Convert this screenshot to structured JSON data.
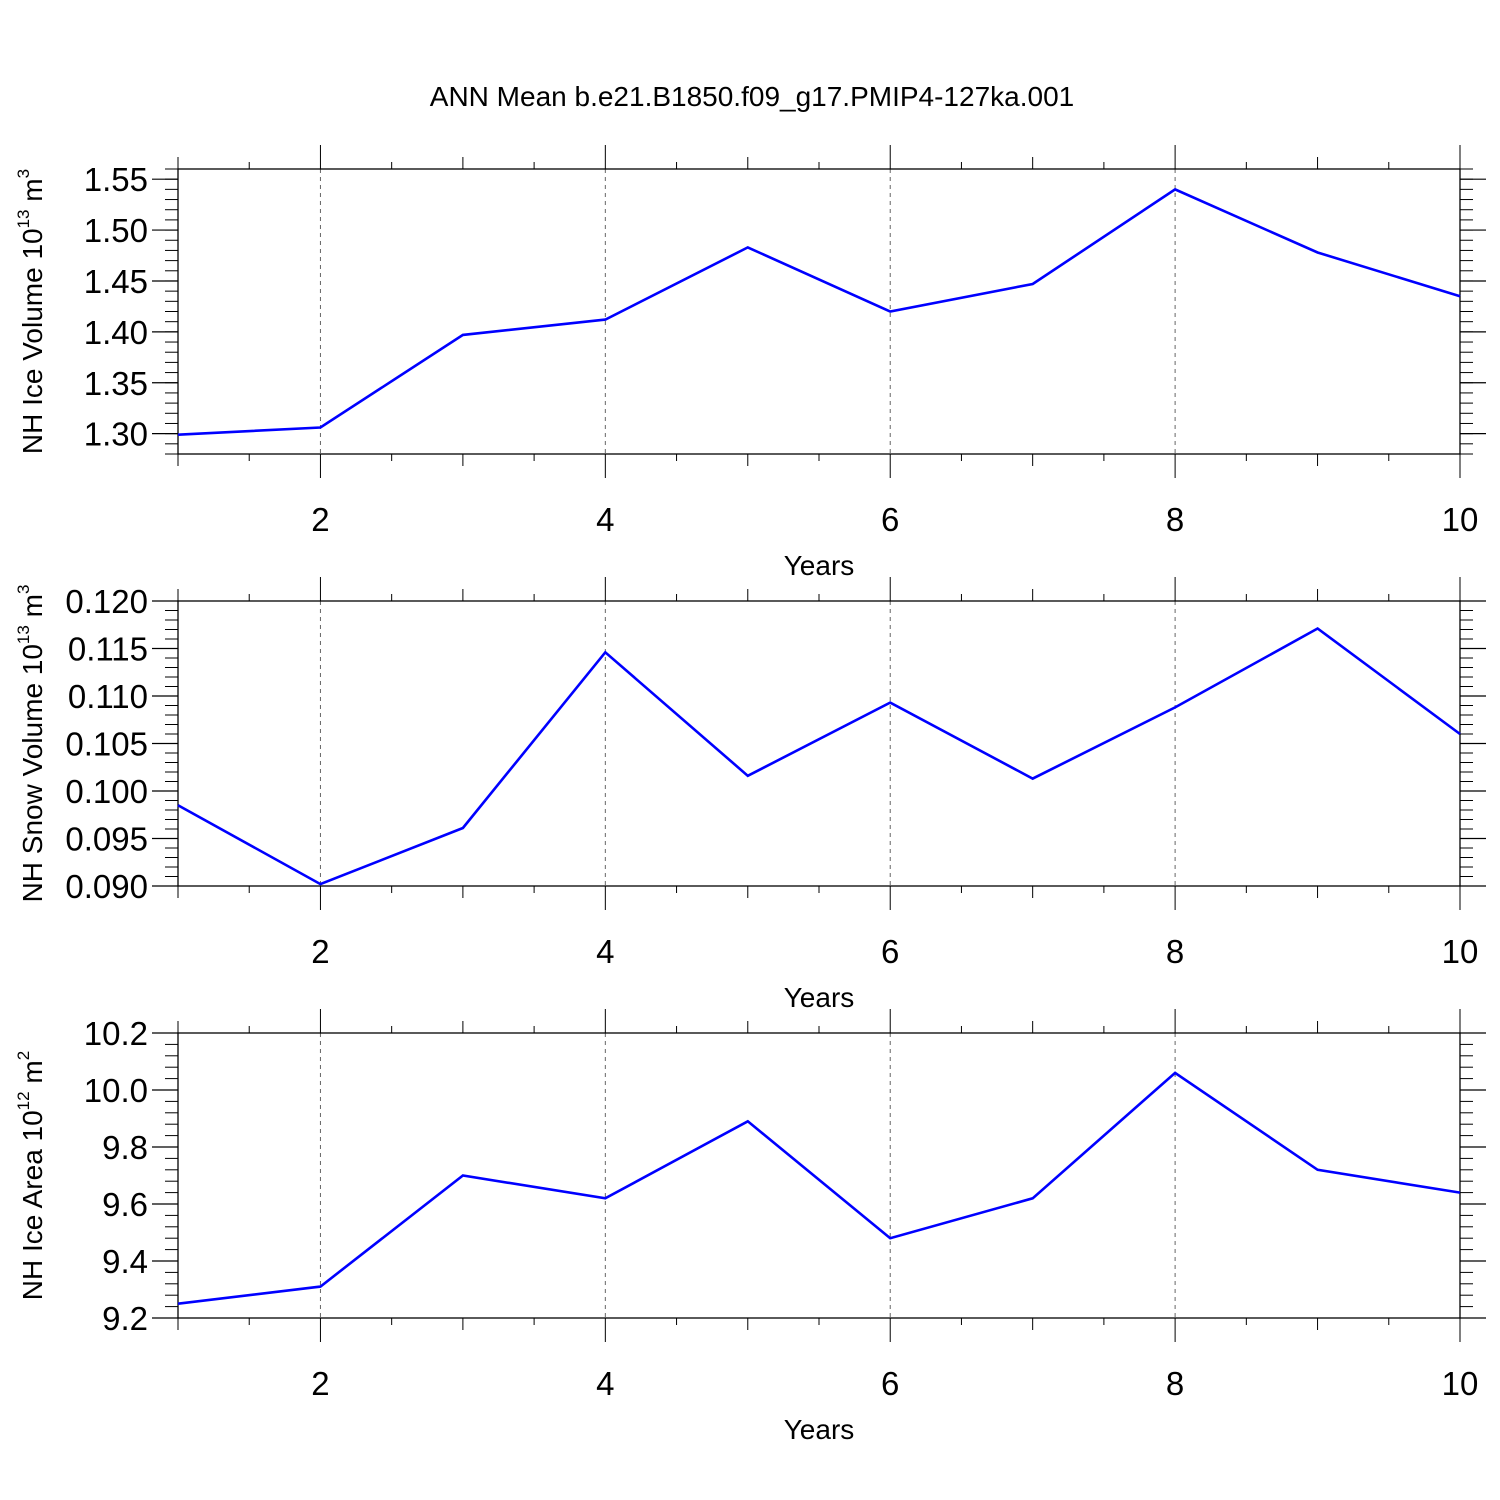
{
  "figure_title": "ANN Mean b.e21.B1850.f09_g17.PMIP4-127ka.001",
  "colors": {
    "line": "#0000ff",
    "axis": "#000000",
    "grid": "#666666"
  },
  "chart_data": [
    {
      "type": "line",
      "xlabel": "Years",
      "ylabel": {
        "text": "NH Ice Volume 10",
        "sup": "13",
        "unit": " m",
        "unit_sup": "3"
      },
      "xlim": [
        1,
        10
      ],
      "ylim": [
        1.28,
        1.56
      ],
      "x_ticks": [
        2,
        4,
        6,
        8,
        10
      ],
      "y_ticks": [
        "1.30",
        "1.35",
        "1.40",
        "1.45",
        "1.50",
        "1.55"
      ],
      "x_grid": [
        2,
        4,
        6,
        8
      ],
      "series": [
        {
          "x": [
            1,
            2,
            3,
            4,
            5,
            6,
            7,
            8,
            9,
            10
          ],
          "values": [
            1.299,
            1.306,
            1.397,
            1.412,
            1.483,
            1.42,
            1.447,
            1.54,
            1.478,
            1.435
          ]
        }
      ]
    },
    {
      "type": "line",
      "xlabel": "Years",
      "ylabel": {
        "text": "NH Snow Volume 10",
        "sup": "13",
        "unit": " m",
        "unit_sup": "3"
      },
      "xlim": [
        1,
        10
      ],
      "ylim": [
        0.09,
        0.12
      ],
      "x_ticks": [
        2,
        4,
        6,
        8,
        10
      ],
      "y_ticks": [
        "0.090",
        "0.095",
        "0.100",
        "0.105",
        "0.110",
        "0.115",
        "0.120"
      ],
      "x_grid": [
        2,
        4,
        6,
        8
      ],
      "series": [
        {
          "x": [
            1,
            2,
            3,
            4,
            5,
            6,
            7,
            8,
            9,
            10
          ],
          "values": [
            0.0985,
            0.0902,
            0.0961,
            0.1146,
            0.1016,
            0.1093,
            0.1013,
            0.1088,
            0.1171,
            0.106
          ]
        }
      ]
    },
    {
      "type": "line",
      "xlabel": "Years",
      "ylabel": {
        "text": "NH Ice Area 10",
        "sup": "12",
        "unit": " m",
        "unit_sup": "2"
      },
      "xlim": [
        1,
        10
      ],
      "ylim": [
        9.2,
        10.2
      ],
      "x_ticks": [
        2,
        4,
        6,
        8,
        10
      ],
      "y_ticks": [
        "9.2",
        "9.4",
        "9.6",
        "9.8",
        "10.0",
        "10.2"
      ],
      "x_grid": [
        2,
        4,
        6,
        8
      ],
      "series": [
        {
          "x": [
            1,
            2,
            3,
            4,
            5,
            6,
            7,
            8,
            9,
            10
          ],
          "values": [
            9.25,
            9.31,
            9.7,
            9.62,
            9.89,
            9.48,
            9.62,
            10.06,
            9.72,
            9.64
          ]
        }
      ]
    }
  ]
}
